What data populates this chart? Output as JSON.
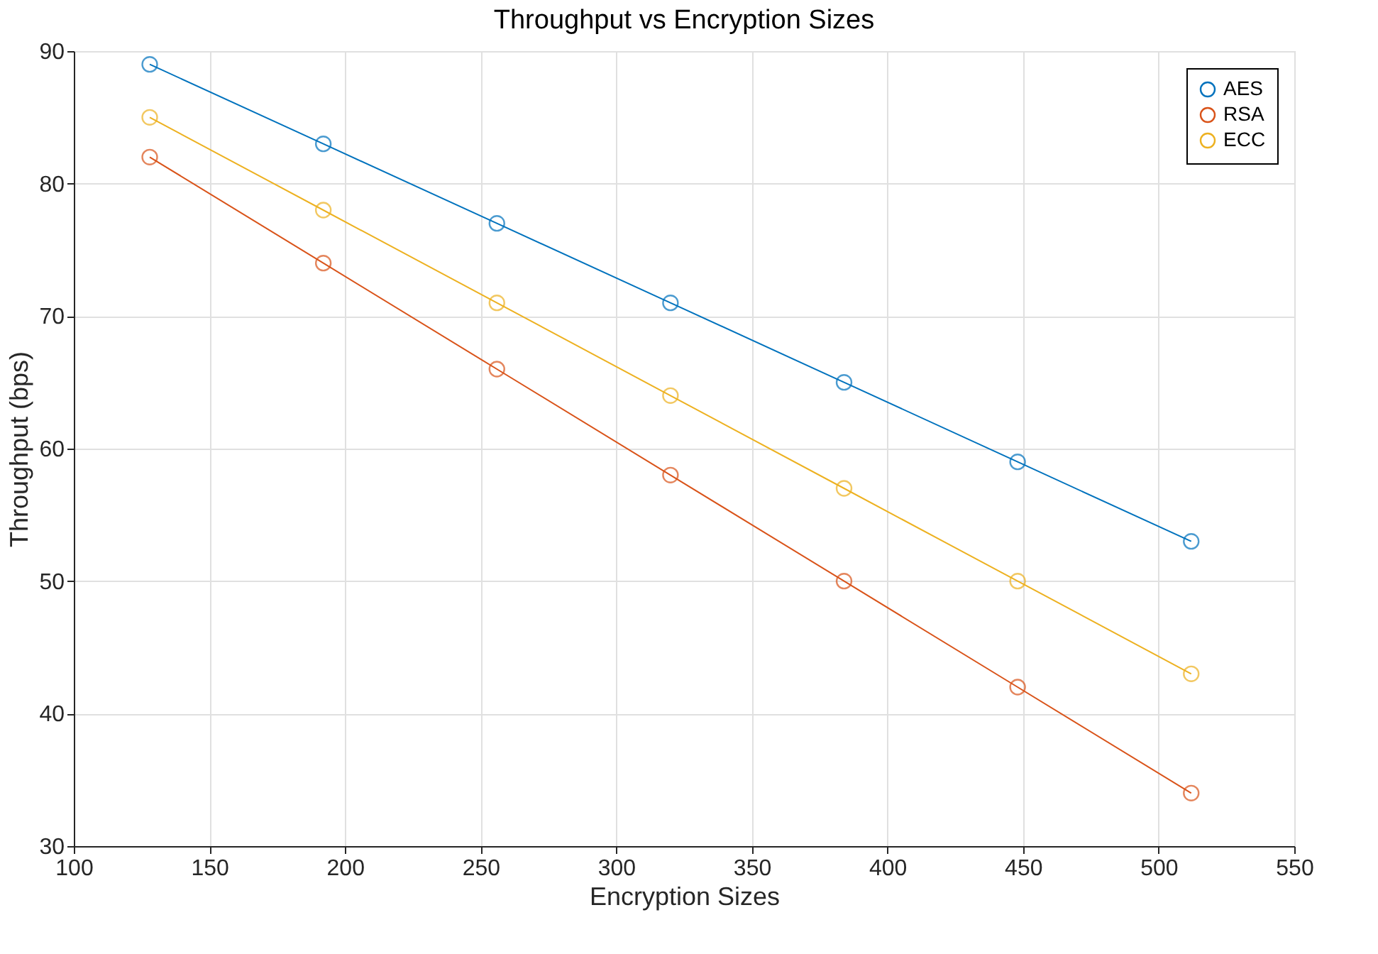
{
  "chart_data": {
    "type": "line",
    "title": "Throughput vs Encryption Sizes",
    "xlabel": "Encryption Sizes",
    "ylabel": "Throughput (bps)",
    "x": [
      128,
      192,
      256,
      320,
      384,
      448,
      512
    ],
    "series": [
      {
        "name": "AES",
        "color": "#0072bd",
        "values": [
          89,
          83,
          77,
          71,
          65,
          59,
          53
        ]
      },
      {
        "name": "RSA",
        "color": "#d95319",
        "values": [
          82,
          74,
          66,
          58,
          50,
          42,
          34
        ]
      },
      {
        "name": "ECC",
        "color": "#edb120",
        "values": [
          85,
          78,
          71,
          64,
          57,
          50,
          43
        ]
      }
    ],
    "xlim": [
      100,
      550
    ],
    "xticks": [
      100,
      150,
      200,
      250,
      300,
      350,
      400,
      450,
      500,
      550
    ],
    "ylim": [
      30,
      90
    ],
    "yticks": [
      30,
      40,
      50,
      60,
      70,
      80,
      90
    ],
    "grid": true,
    "legend": "top right",
    "marker": "circle",
    "line_style": "solid"
  }
}
